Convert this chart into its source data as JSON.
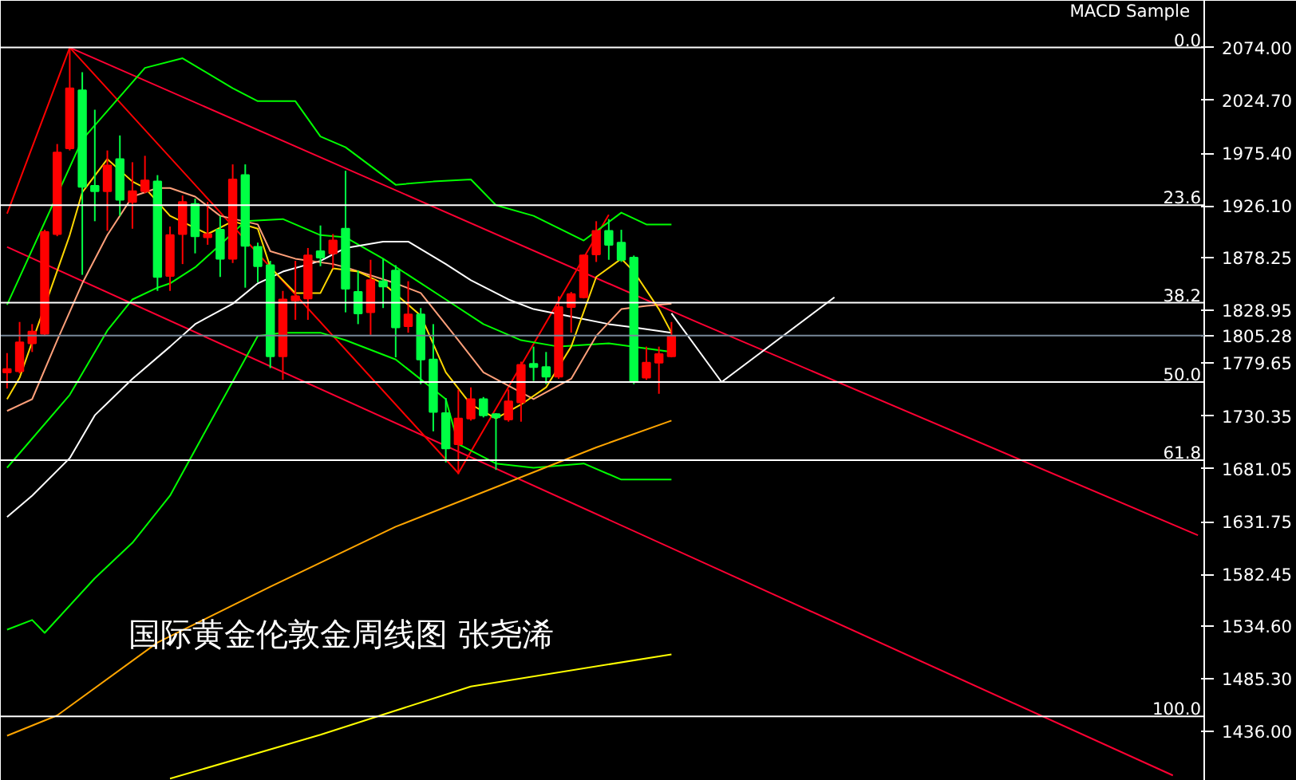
{
  "chart_data": {
    "type": "candlestick",
    "title": "国际黄金伦敦金周线图 张尧浠",
    "annotations": [
      "MACD Sample",
      {
        "text": "0.0",
        "y": 2074
      },
      {
        "text": "23.6",
        "y": 1927
      },
      {
        "text": "38.2",
        "y": 1836
      },
      {
        "text": "50.0",
        "y": 1762
      },
      {
        "text": "61.8",
        "y": 1689
      },
      {
        "text": "100.0",
        "y": 1450
      }
    ],
    "categories": [
      null,
      null,
      null,
      null,
      null,
      null,
      null,
      null,
      null,
      null,
      null,
      null,
      null,
      null,
      null,
      null,
      null,
      null,
      null,
      null,
      null,
      null,
      null,
      null,
      null,
      null,
      null,
      null,
      null,
      null,
      null,
      null,
      null,
      null,
      null,
      null,
      null,
      null,
      null,
      null,
      null,
      null,
      null,
      null,
      null,
      null,
      null,
      null,
      null,
      null,
      null,
      null,
      null,
      null,
      null,
      null,
      null,
      null,
      null,
      null,
      null,
      null,
      null,
      null,
      null,
      null,
      null,
      null,
      null,
      null,
      null,
      null,
      null,
      null,
      null,
      null,
      null,
      null,
      null,
      null,
      null,
      null,
      null,
      null,
      null,
      null,
      null,
      null,
      null,
      null,
      null,
      null,
      null,
      null,
      null,
      null
    ],
    "ohlc": [
      [
        1771,
        1789,
        1756,
        1774
      ],
      [
        1772,
        1818,
        1770,
        1799
      ],
      [
        1798,
        1816,
        1790,
        1809
      ],
      [
        1807,
        1904,
        1805,
        1902
      ],
      [
        1900,
        1984,
        1898,
        1976
      ],
      [
        1980,
        2074,
        1978,
        2036
      ],
      [
        2034,
        2051,
        1862,
        1944
      ],
      [
        1945,
        2016,
        1912,
        1940
      ],
      [
        1940,
        1978,
        1903,
        1964
      ],
      [
        1970,
        1992,
        1917,
        1932
      ],
      [
        1930,
        1967,
        1905,
        1940
      ],
      [
        1940,
        1973,
        1938,
        1950
      ],
      [
        1949,
        1955,
        1847,
        1860
      ],
      [
        1861,
        1907,
        1847,
        1899
      ],
      [
        1900,
        1936,
        1872,
        1930
      ],
      [
        1928,
        1933,
        1882,
        1898
      ],
      [
        1897,
        1930,
        1890,
        1900
      ],
      [
        1904,
        1917,
        1860,
        1877
      ],
      [
        1877,
        1965,
        1873,
        1951
      ],
      [
        1955,
        1965,
        1850,
        1889
      ],
      [
        1888,
        1892,
        1855,
        1870
      ],
      [
        1871,
        1875,
        1775,
        1786
      ],
      [
        1786,
        1847,
        1764,
        1839
      ],
      [
        1838,
        1875,
        1820,
        1842
      ],
      [
        1840,
        1887,
        1820,
        1880
      ],
      [
        1884,
        1908,
        1870,
        1878
      ],
      [
        1882,
        1900,
        1868,
        1894
      ],
      [
        1905,
        1959,
        1827,
        1849
      ],
      [
        1846,
        1866,
        1816,
        1826
      ],
      [
        1827,
        1876,
        1806,
        1857
      ],
      [
        1856,
        1877,
        1831,
        1851
      ],
      [
        1866,
        1871,
        1785,
        1813
      ],
      [
        1814,
        1856,
        1808,
        1825
      ],
      [
        1825,
        1831,
        1760,
        1783
      ],
      [
        1783,
        1816,
        1716,
        1734
      ],
      [
        1733,
        1747,
        1687,
        1700
      ],
      [
        1704,
        1755,
        1676,
        1728
      ],
      [
        1728,
        1757,
        1726,
        1746
      ],
      [
        1746,
        1748,
        1729,
        1731
      ],
      [
        1732,
        1733,
        1680,
        1729
      ],
      [
        1727,
        1755,
        1725,
        1744
      ],
      [
        1743,
        1781,
        1725,
        1778
      ],
      [
        1779,
        1795,
        1763,
        1776
      ],
      [
        1776,
        1790,
        1760,
        1767
      ],
      [
        1767,
        1842,
        1765,
        1832
      ],
      [
        1832,
        1846,
        1808,
        1844
      ],
      [
        1841,
        1881,
        1840,
        1880
      ],
      [
        1881,
        1912,
        1874,
        1903
      ],
      [
        1903,
        1914,
        1876,
        1890
      ],
      [
        1892,
        1904,
        1874,
        1876
      ],
      [
        1878,
        1880,
        1760,
        1762
      ],
      [
        1766,
        1795,
        1764,
        1780
      ],
      [
        1780,
        1795,
        1751,
        1788
      ],
      [
        1786,
        1818,
        1785,
        1805
      ],
      null,
      null,
      null,
      null,
      null,
      null,
      null,
      null,
      null,
      null,
      null,
      null,
      null,
      null,
      null,
      null,
      null,
      null,
      null,
      null,
      null,
      null,
      null,
      null,
      null,
      null,
      null,
      null,
      null,
      null,
      null,
      null,
      null,
      null,
      null,
      null,
      null,
      null,
      null,
      null,
      null,
      null
    ],
    "colors": [
      "#ff0000",
      "#ff0000",
      "#ff0000",
      "#ff0000",
      "#ff0000",
      "#ff0000",
      "#00ff44",
      "#00ff44",
      "#ff0000",
      "#00ff44",
      "#ff0000",
      "#ff0000",
      "#00ff44",
      "#ff0000",
      "#ff0000",
      "#00ff44",
      "#ff0000",
      "#00ff44",
      "#ff0000",
      "#00ff44",
      "#00ff44",
      "#00ff44",
      "#ff0000",
      "#ff0000",
      "#ff0000",
      "#00ff44",
      "#ff0000",
      "#00ff44",
      "#00ff44",
      "#ff0000",
      "#00ff44",
      "#00ff44",
      "#ff0000",
      "#00ff44",
      "#00ff44",
      "#00ff44",
      "#ff0000",
      "#ff0000",
      "#00ff44",
      "#00ff44",
      "#ff0000",
      "#ff0000",
      "#00ff44",
      "#00ff44",
      "#ff0000",
      "#ff0000",
      "#ff0000",
      "#ff0000",
      "#00ff44",
      "#00ff44",
      "#00ff44",
      "#ff0000",
      "#ff0000",
      "#ff0000",
      null,
      null,
      null,
      null,
      null,
      null,
      null,
      null,
      null,
      null,
      null,
      null,
      null,
      null,
      null,
      null,
      null,
      null,
      null,
      null,
      null,
      null,
      null,
      null,
      null,
      null,
      null,
      null,
      null,
      null,
      null,
      null,
      null,
      null,
      null,
      null,
      null,
      null,
      null,
      null,
      null,
      null
    ],
    "series": [
      {
        "type": "line",
        "color": "#ff0033",
        "values": [
          null,
          null,
          null,
          null,
          null,
          2074,
          null,
          null,
          null,
          null,
          null,
          null,
          null,
          null,
          null,
          null,
          null,
          null,
          null,
          null,
          null,
          null,
          null,
          null,
          null,
          null,
          null,
          null,
          null,
          null,
          null,
          null,
          null,
          null,
          null,
          null,
          null,
          null,
          null,
          null,
          null,
          null,
          null,
          null,
          null,
          null,
          null,
          null,
          null,
          null,
          null,
          null,
          null,
          null,
          null,
          1818,
          null,
          null,
          null,
          null,
          null,
          null,
          null,
          null,
          null,
          null,
          null,
          null,
          null,
          null,
          null,
          null,
          null,
          null,
          null,
          null,
          null,
          null,
          null,
          null,
          null,
          null,
          null,
          null,
          null,
          null,
          null,
          null,
          null,
          null,
          null,
          null,
          null,
          null,
          null,
          1619
        ]
      },
      {
        "type": "line",
        "color": "#ff0033",
        "values": [
          1888,
          null,
          null,
          null,
          null,
          null,
          null,
          null,
          null,
          null,
          null,
          null,
          null,
          null,
          null,
          null,
          null,
          null,
          null,
          null,
          null,
          null,
          null,
          null,
          null,
          null,
          null,
          null,
          null,
          null,
          null,
          null,
          null,
          null,
          null,
          null,
          null,
          null,
          null,
          null,
          null,
          null,
          null,
          null,
          null,
          null,
          null,
          null,
          null,
          null,
          null,
          null,
          null,
          null,
          null,
          null,
          null,
          null,
          null,
          null,
          null,
          null,
          null,
          null,
          null,
          null,
          null,
          null,
          null,
          null,
          null,
          null,
          null,
          null,
          null,
          null,
          null,
          null,
          null,
          null,
          null,
          null,
          null,
          null,
          null,
          null,
          null,
          null,
          null,
          null,
          null,
          null,
          null,
          1395,
          null,
          null
        ]
      },
      {
        "type": "line",
        "color": "#ff0000",
        "values": [
          1919,
          null,
          null,
          null,
          null,
          2074,
          null,
          null,
          null,
          null,
          null,
          null,
          null,
          null,
          null,
          null,
          null,
          null,
          null,
          null,
          null,
          null,
          null,
          null,
          null,
          null,
          null,
          null,
          null,
          null,
          null,
          null,
          null,
          null,
          null,
          null,
          1677,
          null,
          null,
          null,
          null,
          null,
          null,
          null,
          null,
          null,
          null,
          null,
          1918,
          null,
          null,
          null,
          null,
          null,
          null,
          null,
          null,
          null,
          null,
          null,
          null,
          null,
          null,
          null,
          null,
          null,
          null,
          null,
          null,
          null,
          null,
          null,
          null,
          null,
          null,
          null,
          null,
          null,
          null,
          null,
          null,
          null,
          null,
          null,
          null,
          null,
          null,
          null,
          null,
          null,
          null,
          null,
          null,
          null,
          null,
          null
        ]
      },
      {
        "type": "line",
        "color": "#00ff00",
        "values": [
          1834,
          null,
          null,
          null,
          null,
          null,
          1988,
          null,
          null,
          null,
          null,
          2055,
          null,
          null,
          2064,
          null,
          null,
          null,
          2036,
          null,
          2024,
          null,
          null,
          2024,
          null,
          1991,
          null,
          1981,
          null,
          null,
          null,
          1946,
          null,
          null,
          1949,
          null,
          null,
          1951,
          null,
          1927,
          null,
          null,
          1917,
          null,
          null,
          null,
          1894,
          null,
          null,
          1920,
          null,
          1909,
          null,
          1909,
          null,
          null,
          null,
          null,
          null,
          null,
          null,
          null,
          null,
          null,
          null,
          null,
          null,
          null,
          null,
          null,
          null,
          null,
          null,
          null,
          null,
          null,
          null,
          null,
          null,
          null,
          null,
          null,
          null,
          null,
          null,
          null,
          null,
          null,
          null,
          null,
          null,
          null,
          null,
          null,
          null,
          null
        ]
      },
      {
        "type": "line",
        "color": "#00ff00",
        "values": [
          1682,
          null,
          null,
          null,
          null,
          1750,
          null,
          null,
          1810,
          null,
          1839,
          null,
          1850,
          1854,
          null,
          1869,
          null,
          1890,
          null,
          1912,
          null,
          null,
          1914,
          null,
          null,
          1899,
          null,
          1897,
          null,
          null,
          1877,
          null,
          null,
          null,
          null,
          1839,
          null,
          null,
          1816,
          null,
          null,
          1801,
          null,
          null,
          1795,
          null,
          null,
          null,
          1798,
          null,
          null,
          null,
          null,
          1790,
          null,
          null,
          null,
          null,
          null,
          null,
          null,
          null,
          null,
          null,
          null,
          null,
          null,
          null,
          null,
          null,
          null,
          null,
          null,
          null,
          null,
          null,
          null,
          null,
          null,
          null,
          null,
          null,
          null,
          null,
          null,
          null,
          null,
          null,
          null,
          null,
          null,
          null,
          null,
          null,
          null,
          null
        ]
      },
      {
        "type": "line",
        "color": "#00ff00",
        "values": [
          1531,
          null,
          1540,
          1528,
          null,
          null,
          null,
          1579,
          null,
          null,
          1612,
          null,
          null,
          1656,
          null,
          null,
          1720,
          null,
          null,
          null,
          1805,
          null,
          1808,
          null,
          null,
          1808,
          null,
          1801,
          null,
          null,
          null,
          1783,
          null,
          null,
          null,
          1746,
          1704,
          null,
          null,
          1686,
          null,
          null,
          1682,
          null,
          null,
          null,
          1686,
          null,
          null,
          1671,
          null,
          null,
          null,
          1671,
          null,
          null,
          null,
          null,
          null,
          null,
          null,
          null,
          null,
          null,
          null,
          null,
          null,
          null,
          null,
          null,
          null,
          null,
          null,
          null,
          null,
          null,
          null,
          null,
          null,
          null,
          null,
          null,
          null,
          null,
          null,
          null,
          null,
          null,
          null,
          null,
          null,
          null,
          null,
          null,
          null,
          null
        ]
      },
      {
        "type": "line",
        "color": "#ffffff",
        "values": [
          1636,
          null,
          1656,
          null,
          null,
          1691,
          null,
          1731,
          null,
          null,
          1765,
          null,
          null,
          1795,
          null,
          1816,
          null,
          null,
          1835,
          null,
          1854,
          null,
          1865,
          null,
          null,
          1875,
          null,
          1887,
          null,
          null,
          1893,
          null,
          1893,
          null,
          null,
          1872,
          null,
          1857,
          null,
          null,
          1839,
          null,
          1830,
          null,
          null,
          1823,
          null,
          null,
          1816,
          null,
          1813,
          null,
          null,
          1808,
          null,
          null,
          null,
          null,
          null,
          null,
          null,
          null,
          null,
          null,
          null,
          null,
          null,
          null,
          null,
          null,
          null,
          null,
          null,
          null,
          null,
          null,
          null,
          null,
          null,
          null,
          null,
          null,
          null,
          null,
          null,
          null,
          null,
          null,
          null,
          null,
          null,
          null,
          null,
          null,
          null,
          null
        ]
      },
      {
        "type": "line",
        "color": "#ffa07a",
        "values": [
          1735,
          null,
          1746,
          null,
          1801,
          null,
          1854,
          null,
          1899,
          null,
          1935,
          null,
          1943,
          1943,
          null,
          1935,
          null,
          1917,
          null,
          null,
          1909,
          1884,
          null,
          1877,
          null,
          null,
          1872,
          1869,
          null,
          null,
          null,
          1854,
          null,
          1845,
          null,
          null,
          1801,
          null,
          1771,
          null,
          null,
          null,
          1746,
          null,
          null,
          1765,
          null,
          1805,
          null,
          1830,
          null,
          1833,
          null,
          1835,
          null,
          null,
          null,
          null,
          null,
          null,
          null,
          null,
          null,
          null,
          null,
          null,
          null,
          null,
          null,
          null,
          null,
          null,
          null,
          null,
          null,
          null,
          null,
          null,
          null,
          null,
          null,
          null,
          null,
          null,
          null,
          null,
          null,
          null,
          null,
          null,
          null,
          null,
          null,
          null,
          null,
          null
        ]
      },
      {
        "type": "line",
        "color": "#ffd700",
        "values": [
          1746,
          1766,
          null,
          null,
          null,
          1899,
          1939,
          null,
          1970,
          null,
          1949,
          1943,
          null,
          1917,
          null,
          null,
          1900,
          null,
          1912,
          null,
          1905,
          1869,
          null,
          1845,
          null,
          1845,
          1868,
          null,
          1865,
          null,
          1854,
          null,
          null,
          1824,
          null,
          1771,
          null,
          1741,
          null,
          1728,
          null,
          1741,
          null,
          1757,
          null,
          1795,
          null,
          1860,
          null,
          1877,
          1865,
          null,
          1830,
          1808,
          null,
          null,
          null,
          null,
          null,
          null,
          null,
          null,
          null,
          null,
          null,
          null,
          null,
          null,
          null,
          null,
          null,
          null,
          null,
          null,
          null,
          null,
          null,
          null,
          null,
          null,
          null,
          null,
          null,
          null,
          null,
          null,
          null,
          null,
          null,
          null,
          null,
          null,
          null,
          null,
          null,
          null
        ]
      },
      {
        "type": "line",
        "color": "#ffa500",
        "values": [
          1432,
          null,
          null,
          null,
          1451,
          null,
          null,
          null,
          null,
          null,
          null,
          null,
          1519,
          null,
          null,
          null,
          null,
          null,
          null,
          null,
          null,
          1571,
          null,
          null,
          null,
          null,
          null,
          null,
          null,
          null,
          null,
          1627,
          null,
          null,
          null,
          null,
          null,
          null,
          null,
          1664,
          null,
          null,
          null,
          null,
          null,
          null,
          null,
          1701,
          null,
          null,
          null,
          null,
          null,
          1726,
          null,
          null,
          null,
          null,
          null,
          null,
          null,
          null,
          null,
          null,
          null,
          null,
          null,
          null,
          null,
          null,
          null,
          null,
          null,
          null,
          null,
          null,
          null,
          null,
          null,
          null,
          null,
          null,
          null,
          null,
          null,
          null,
          null,
          null,
          null,
          null,
          null,
          null,
          null,
          null,
          null,
          null
        ]
      },
      {
        "type": "line",
        "color": "#ffff00",
        "values": [
          null,
          null,
          null,
          null,
          null,
          null,
          null,
          null,
          null,
          null,
          null,
          null,
          null,
          1392,
          null,
          null,
          null,
          null,
          null,
          null,
          null,
          null,
          null,
          null,
          null,
          1433,
          null,
          null,
          null,
          null,
          null,
          null,
          null,
          null,
          null,
          null,
          null,
          1478,
          null,
          null,
          null,
          null,
          null,
          null,
          null,
          null,
          null,
          null,
          null,
          null,
          null,
          null,
          null,
          1508,
          null,
          null,
          null,
          null,
          null,
          null,
          null,
          null,
          null,
          null,
          null,
          null,
          null,
          null,
          null,
          null,
          null,
          null,
          null,
          null,
          null,
          null,
          null,
          null,
          null,
          null,
          null,
          null,
          null,
          null,
          null,
          null,
          null,
          null,
          null,
          null,
          null,
          null,
          null,
          null,
          null,
          null
        ]
      },
      {
        "type": "line",
        "color": "#ffffff",
        "values": [
          null,
          null,
          null,
          null,
          null,
          null,
          null,
          null,
          null,
          null,
          null,
          null,
          null,
          null,
          null,
          null,
          null,
          null,
          null,
          null,
          null,
          null,
          null,
          null,
          null,
          null,
          null,
          null,
          null,
          null,
          null,
          null,
          null,
          null,
          null,
          null,
          null,
          null,
          null,
          null,
          null,
          null,
          null,
          null,
          null,
          null,
          null,
          null,
          null,
          null,
          null,
          null,
          null,
          1826,
          null,
          null,
          null,
          1762,
          null,
          null,
          null,
          null,
          null,
          null,
          null,
          null,
          1841,
          null,
          null,
          null,
          null,
          null,
          null,
          null,
          null,
          null,
          null,
          null,
          null,
          null,
          null,
          null,
          null,
          null,
          null,
          null,
          null,
          null,
          null,
          null,
          null,
          null,
          null,
          null,
          null,
          null
        ]
      }
    ],
    "ylim": [
      1390,
      2117.6
    ],
    "yticks": [
      {
        "value": 2074,
        "label": "2074.00"
      },
      {
        "value": 2024.7,
        "label": "2024.70"
      },
      {
        "value": 1975.4,
        "label": "1975.40"
      },
      {
        "value": 1926.1,
        "label": "1926.10"
      },
      {
        "value": 1878.25,
        "label": "1878.25"
      },
      {
        "value": 1828.95,
        "label": "1828.95"
      },
      {
        "value": 1779.65,
        "label": "1779.65"
      },
      {
        "value": 1730.35,
        "label": "1730.35"
      },
      {
        "value": 1681.05,
        "label": "1681.05"
      },
      {
        "value": 1631.75,
        "label": "1631.75"
      },
      {
        "value": 1582.45,
        "label": "1582.45"
      },
      {
        "value": 1534.6,
        "label": "1534.60"
      },
      {
        "value": 1485.3,
        "label": "1485.30"
      },
      {
        "value": 1436,
        "label": "1436.00"
      }
    ],
    "tick_labels": "y",
    "grid": false,
    "ref_lines": [
      {
        "axis": "y",
        "value": 2074,
        "color": "#ffffff"
      },
      {
        "axis": "y",
        "value": 1927,
        "color": "#ffffff"
      },
      {
        "axis": "y",
        "value": 1836,
        "color": "#ffffff"
      },
      {
        "axis": "y",
        "value": 1762,
        "color": "#ffffff"
      },
      {
        "axis": "y",
        "value": 1689,
        "color": "#ffffff"
      },
      {
        "axis": "y",
        "value": 1450,
        "color": "#ffffff"
      },
      {
        "axis": "y",
        "value": 1805.28,
        "label": "1805.28",
        "color": "#778899"
      }
    ]
  }
}
